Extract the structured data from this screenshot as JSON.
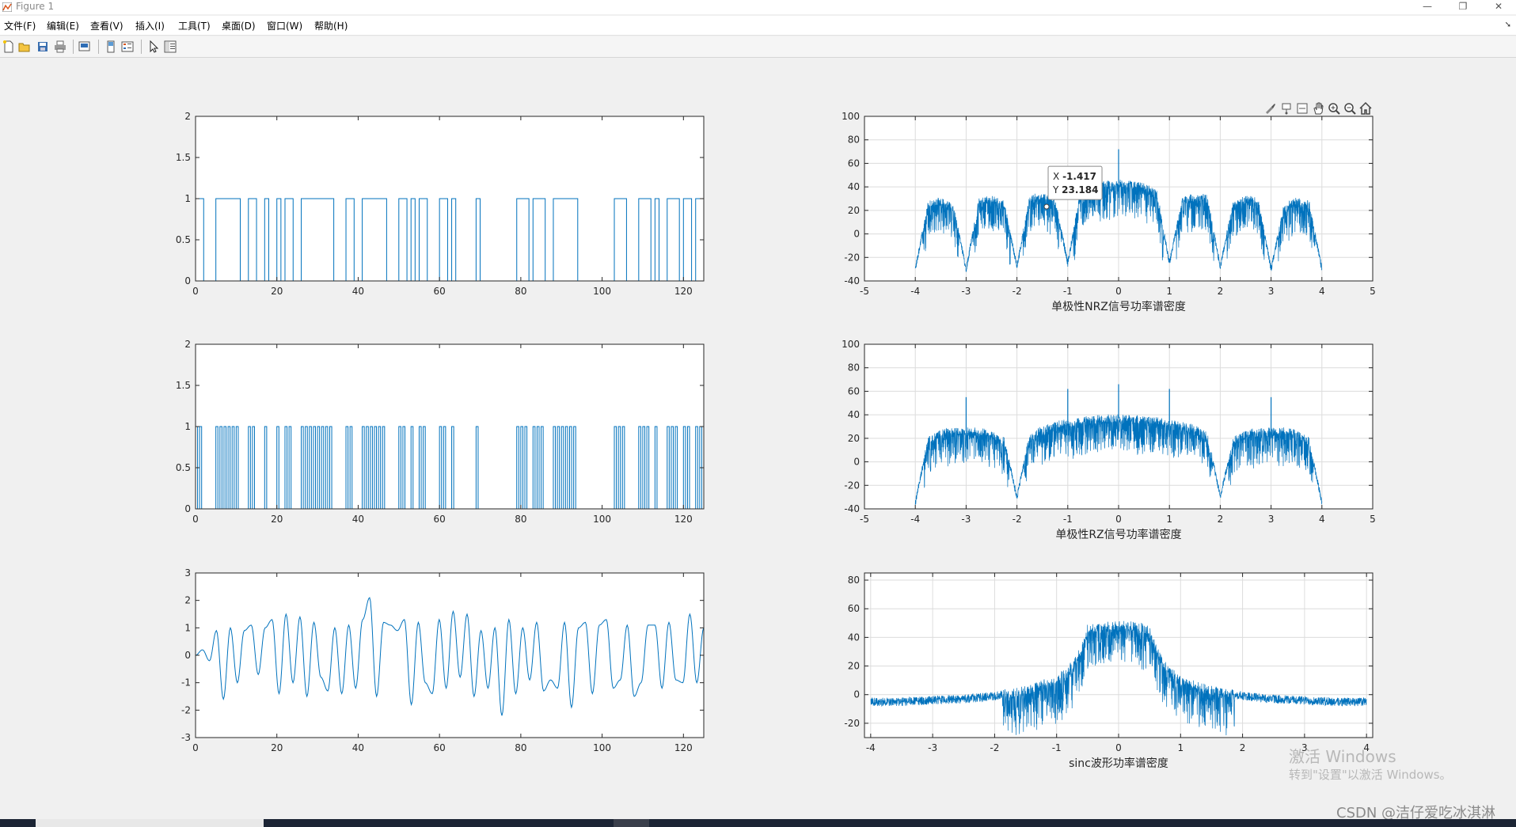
{
  "window": {
    "title": "Figure 1"
  },
  "menu": [
    "文件(F)",
    "编辑(E)",
    "查看(V)",
    "插入(I)",
    "工具(T)",
    "桌面(D)",
    "窗口(W)",
    "帮助(H)"
  ],
  "toolbar_icons": [
    "new-figure-icon",
    "open-file-icon",
    "save-icon",
    "print-icon",
    "print-preview-icon",
    "dock-icon",
    "insert-legend-icon",
    "pointer-icon",
    "property-editor-icon"
  ],
  "axes_toolbar_icons": [
    "brush-icon",
    "data-tips-icon",
    "edit-plot-icon",
    "pan-icon",
    "zoom-in-icon",
    "zoom-out-icon",
    "home-icon"
  ],
  "watermark": {
    "line1": "激活 Windows",
    "line2": "转到\"设置\"以激活 Windows。"
  },
  "csdn_credit": "CSDN @洁仔爱吃冰淇淋",
  "colors": {
    "series": "#0072bd",
    "axes_bg": "#ffffff",
    "figure_bg": "#f0f0f0",
    "grid": "#dcdcdc"
  },
  "chart_data": [
    {
      "type": "line",
      "id": "nrz-waveform",
      "step": true,
      "title": "",
      "xlabel": "",
      "ylabel": "",
      "xlim": [
        0,
        125
      ],
      "ylim": [
        0,
        2
      ],
      "xticks": [
        0,
        20,
        40,
        60,
        80,
        100,
        120
      ],
      "yticks": [
        0,
        0.5,
        1,
        1.5,
        2
      ],
      "grid": false,
      "bits": [
        1,
        1,
        0,
        0,
        0,
        1,
        1,
        1,
        1,
        1,
        1,
        0,
        0,
        1,
        1,
        0,
        0,
        1,
        0,
        0,
        1,
        0,
        1,
        1,
        0,
        0,
        1,
        1,
        1,
        1,
        1,
        1,
        1,
        1,
        0,
        0,
        0,
        1,
        1,
        0,
        0,
        1,
        1,
        1,
        1,
        1,
        1,
        0,
        0,
        0,
        1,
        1,
        0,
        1,
        0,
        1,
        1,
        0,
        0,
        0,
        1,
        1,
        0,
        1,
        0,
        0,
        0,
        0,
        0,
        1,
        0,
        0,
        0,
        0,
        0,
        0,
        0,
        0,
        0,
        1,
        1,
        1,
        0,
        1,
        1,
        1,
        0,
        0,
        1,
        1,
        1,
        1,
        1,
        1,
        0,
        0,
        0,
        0,
        0,
        0,
        0,
        0,
        0,
        1,
        1,
        1,
        0,
        0,
        0,
        1,
        1,
        1,
        0,
        1,
        0,
        0,
        1,
        1,
        1,
        0,
        1,
        1,
        0,
        1,
        1,
        0
      ]
    },
    {
      "type": "line",
      "id": "nrz-psd",
      "title": "",
      "xlabel": "单极性NRZ信号功率谱密度",
      "ylabel": "",
      "xlim": [
        -5,
        5
      ],
      "ylim": [
        -40,
        100
      ],
      "xticks": [
        -5,
        -4,
        -3,
        -2,
        -1,
        0,
        1,
        2,
        3,
        4,
        5
      ],
      "yticks": [
        -40,
        -20,
        0,
        20,
        40,
        60,
        80,
        100
      ],
      "grid": true,
      "envelope_x": [
        -4,
        -3.75,
        -3.5,
        -3.25,
        -3,
        -2.75,
        -2.5,
        -2.25,
        -2,
        -1.75,
        -1.5,
        -1.25,
        -1,
        -0.75,
        -0.5,
        -0.25,
        0,
        0.25,
        0.5,
        0.75,
        1,
        1.25,
        1.5,
        1.75,
        2,
        2.25,
        2.5,
        2.75,
        3,
        3.25,
        3.5,
        3.75,
        4
      ],
      "envelope_y": [
        -30,
        25,
        28,
        22,
        -30,
        27,
        30,
        25,
        -28,
        30,
        32,
        28,
        -25,
        35,
        40,
        42,
        43,
        42,
        40,
        35,
        -25,
        28,
        32,
        30,
        -28,
        25,
        30,
        27,
        -30,
        22,
        28,
        25,
        -30
      ],
      "spikes": [
        {
          "x": 0,
          "y": 72
        }
      ],
      "datatip": {
        "x_label": "X",
        "x_value": "-1.417",
        "y_label": "Y",
        "y_value": "23.184",
        "x": -1.417,
        "y": 23.184
      }
    },
    {
      "type": "line",
      "id": "rz-waveform",
      "step": true,
      "title": "",
      "xlabel": "",
      "ylabel": "",
      "xlim": [
        0,
        125
      ],
      "ylim": [
        0,
        2
      ],
      "xticks": [
        0,
        20,
        40,
        60,
        80,
        100,
        120
      ],
      "yticks": [
        0,
        0.5,
        1,
        1.5,
        2
      ],
      "grid": false,
      "bits": [
        1,
        1,
        0,
        0,
        0,
        1,
        1,
        1,
        1,
        1,
        1,
        0,
        0,
        1,
        1,
        0,
        0,
        1,
        0,
        0,
        1,
        0,
        1,
        1,
        0,
        0,
        1,
        1,
        1,
        1,
        1,
        1,
        1,
        1,
        0,
        0,
        0,
        1,
        1,
        0,
        0,
        1,
        1,
        1,
        1,
        1,
        1,
        0,
        0,
        0,
        1,
        1,
        0,
        1,
        0,
        1,
        1,
        0,
        0,
        0,
        1,
        1,
        0,
        1,
        0,
        0,
        0,
        0,
        0,
        1,
        0,
        0,
        0,
        0,
        0,
        0,
        0,
        0,
        0,
        1,
        1,
        1,
        0,
        1,
        1,
        1,
        0,
        0,
        1,
        1,
        1,
        1,
        1,
        1,
        0,
        0,
        0,
        0,
        0,
        0,
        0,
        0,
        0,
        1,
        1,
        1,
        0,
        0,
        0,
        1,
        1,
        1,
        0,
        1,
        0,
        0,
        1,
        1,
        1,
        0,
        1,
        1,
        0,
        1,
        1,
        0
      ]
    },
    {
      "type": "line",
      "id": "rz-psd",
      "title": "",
      "xlabel": "单极性RZ信号功率谱密度",
      "ylabel": "",
      "xlim": [
        -5,
        5
      ],
      "ylim": [
        -40,
        100
      ],
      "xticks": [
        -5,
        -4,
        -3,
        -2,
        -1,
        0,
        1,
        2,
        3,
        4,
        5
      ],
      "yticks": [
        -40,
        -20,
        0,
        20,
        40,
        60,
        80,
        100
      ],
      "grid": true,
      "envelope_x": [
        -4,
        -3.75,
        -3.5,
        -3.25,
        -3,
        -2.75,
        -2.5,
        -2.25,
        -2,
        -1.75,
        -1.5,
        -1.25,
        -1,
        -0.75,
        -0.5,
        -0.25,
        0,
        0.25,
        0.5,
        0.75,
        1,
        1.25,
        1.5,
        1.75,
        2,
        2.25,
        2.5,
        2.75,
        3,
        3.25,
        3.5,
        3.75,
        4
      ],
      "envelope_y": [
        -35,
        18,
        24,
        26,
        26,
        26,
        24,
        18,
        -30,
        22,
        28,
        31,
        33,
        35,
        36,
        37,
        37,
        37,
        36,
        35,
        33,
        31,
        28,
        22,
        -30,
        18,
        24,
        26,
        26,
        26,
        24,
        18,
        -35
      ],
      "spikes": [
        {
          "x": -3,
          "y": 55
        },
        {
          "x": -1,
          "y": 62
        },
        {
          "x": 0,
          "y": 66
        },
        {
          "x": 1,
          "y": 62
        },
        {
          "x": 3,
          "y": 55
        }
      ]
    },
    {
      "type": "line",
      "id": "sinc-waveform",
      "title": "",
      "xlabel": "",
      "ylabel": "",
      "xlim": [
        0,
        125
      ],
      "ylim": [
        -3,
        3
      ],
      "xticks": [
        0,
        20,
        40,
        60,
        80,
        100,
        120
      ],
      "yticks": [
        -3,
        -2,
        -1,
        0,
        1,
        2,
        3
      ],
      "grid": false,
      "peaks": [
        0,
        0.2,
        -0.2,
        0.9,
        -1.6,
        1.0,
        -1.0,
        0.9,
        1.1,
        -0.7,
        1.0,
        1.3,
        -1.4,
        1.5,
        -1.0,
        1.4,
        -1.5,
        1.2,
        -0.8,
        -1.3,
        1.0,
        -1.4,
        1.1,
        -1.2,
        1.3,
        2.1,
        -1.5,
        1.2,
        1.1,
        0.9,
        1.3,
        -1.8,
        1.2,
        -1.0,
        -1.4,
        1.3,
        -1.2,
        1.6,
        -0.8,
        1.5,
        -1.5,
        0.9,
        -1.2,
        1.0,
        -2.2,
        1.3,
        -1.4,
        1.0,
        -0.9,
        1.2,
        -1.3,
        -0.9,
        -1.2,
        1.2,
        -1.9,
        1.0,
        1.2,
        -1.4,
        1.1,
        1.3,
        -1.2,
        -0.9,
        1.1,
        -1.5,
        -1.0,
        1.1,
        1.1,
        -1.2,
        1.2,
        -0.9,
        -1.0,
        1.5,
        -1.0,
        1.0
      ],
      "tail": 0.8
    },
    {
      "type": "line",
      "id": "sinc-psd",
      "title": "",
      "xlabel": "sinc波形功率谱密度",
      "ylabel": "",
      "xlim": [
        -4.1,
        4.1
      ],
      "ylim": [
        -30,
        85
      ],
      "xticks": [
        -4,
        -3,
        -2,
        -1,
        0,
        1,
        2,
        3,
        4
      ],
      "yticks": [
        -20,
        0,
        20,
        40,
        60,
        80
      ],
      "grid": true,
      "envelope_x": [
        -4,
        -3.5,
        -3,
        -2.5,
        -2,
        -1.5,
        -1,
        -0.75,
        -0.6,
        -0.5,
        -0.25,
        0,
        0.25,
        0.5,
        0.6,
        0.75,
        1,
        1.5,
        2,
        2.5,
        3,
        3.5,
        4
      ],
      "envelope_y": [
        -5,
        -5,
        -4,
        -3,
        -1,
        3,
        10,
        20,
        32,
        46,
        48,
        48,
        48,
        46,
        32,
        20,
        10,
        3,
        -1,
        -3,
        -4,
        -5,
        -5
      ]
    }
  ]
}
